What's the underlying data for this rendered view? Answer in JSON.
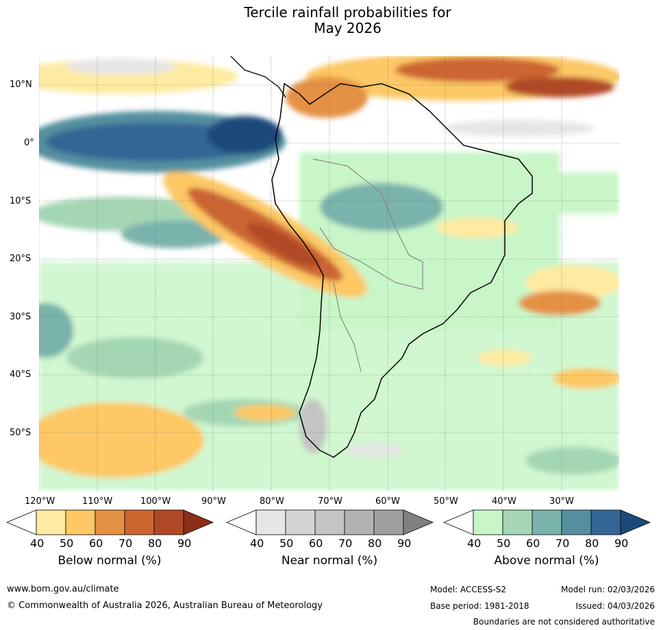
{
  "title": {
    "line1": "Tercile rainfall probabilities for",
    "line2": "May 2026"
  },
  "lat_labels": [
    "10°N",
    "0°",
    "10°S",
    "20°S",
    "30°S",
    "40°S",
    "50°S"
  ],
  "lon_labels": [
    "120°W",
    "110°W",
    "100°W",
    "90°W",
    "80°W",
    "70°W",
    "60°W",
    "50°W",
    "40°W",
    "30°W"
  ],
  "colorbars": [
    {
      "title": "Below normal (%)",
      "ticks": [
        "40",
        "50",
        "60",
        "70",
        "80",
        "90"
      ],
      "colors": [
        "#ffffff",
        "#feeaa0",
        "#fdc865",
        "#e49145",
        "#cc6530",
        "#b04a26",
        "#8c2e18"
      ]
    },
    {
      "title": "Near normal (%)",
      "ticks": [
        "40",
        "50",
        "60",
        "70",
        "80",
        "90"
      ],
      "colors": [
        "#ffffff",
        "#e6e6e6",
        "#d4d4d4",
        "#c4c4c4",
        "#b2b2b2",
        "#9e9e9e",
        "#808080"
      ]
    },
    {
      "title": "Above normal (%)",
      "ticks": [
        "40",
        "50",
        "60",
        "70",
        "80",
        "90"
      ],
      "colors": [
        "#ffffff",
        "#c8f6c8",
        "#a4d6b4",
        "#7ab2ac",
        "#5590a0",
        "#336694",
        "#1a4a7a"
      ]
    }
  ],
  "footer": {
    "url": "www.bom.gov.au/climate",
    "copyright": "© Commonwealth of Australia 2026, Australian Bureau of Meteorology",
    "model": "Model: ACCESS-S2",
    "base_period": "Base period: 1981-2018",
    "model_run": "Model run: 02/03/2026",
    "issued": "Issued: 04/03/2026",
    "disclaimer": "Boundaries are not considered authoritative"
  }
}
